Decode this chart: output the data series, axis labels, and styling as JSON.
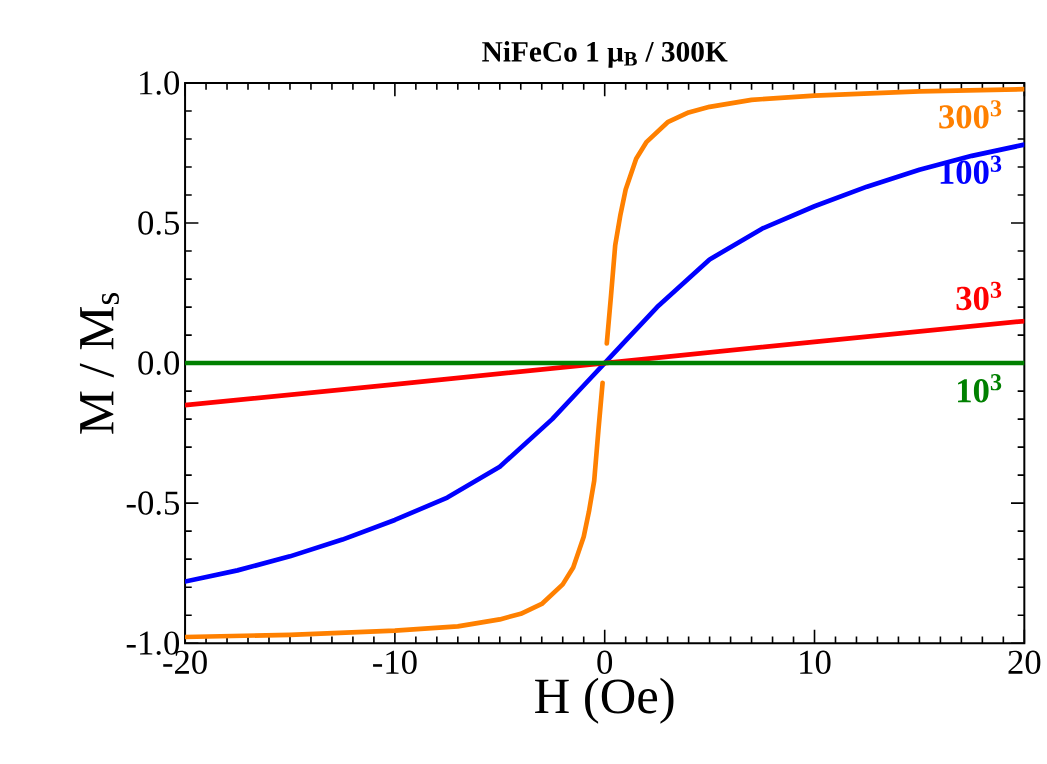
{
  "chart_data": {
    "type": "line",
    "title": "NiFeCo 1 μ$_{B}$ / 300K",
    "xlabel": "H  (Oe)",
    "ylabel": "M / M$_{s}$",
    "xlim": [
      -20,
      20
    ],
    "ylim": [
      -1,
      1
    ],
    "xticks": [
      -20,
      -10,
      0,
      10,
      20
    ],
    "yticks": [
      {
        "value": -1,
        "label": "-1.0"
      },
      {
        "value": -0.5,
        "label": "-0.5"
      },
      {
        "value": 0,
        "label": "0.0"
      },
      {
        "value": 0.5,
        "label": "0.5"
      },
      {
        "value": 1,
        "label": "1.0"
      }
    ],
    "line_style": "solid",
    "series": [
      {
        "name": "300$^{3}$",
        "color": "#ff8000",
        "x": [
          -20,
          -15,
          -10,
          -7,
          -5,
          -4,
          -3,
          -2,
          -1.5,
          -1,
          -0.75,
          -0.5,
          -0.3,
          -0.1,
          0,
          0.1,
          0.3,
          0.5,
          0.75,
          1,
          1.5,
          2,
          3,
          4,
          5,
          7,
          10,
          15,
          20
        ],
        "values": [
          -0.978,
          -0.97,
          -0.955,
          -0.94,
          -0.915,
          -0.895,
          -0.86,
          -0.79,
          -0.73,
          -0.62,
          -0.53,
          -0.42,
          -0.24,
          -0.07,
          null,
          0.07,
          0.24,
          0.42,
          0.53,
          0.62,
          0.73,
          0.79,
          0.86,
          0.895,
          0.915,
          0.94,
          0.955,
          0.97,
          0.978
        ]
      },
      {
        "name": "100$^{3}$",
        "color": "#0000ff",
        "x": [
          -20,
          -17.5,
          -15,
          -12.5,
          -10,
          -7.5,
          -5,
          -2.5,
          -1,
          0,
          1,
          2.5,
          5,
          7.5,
          10,
          12.5,
          15,
          17.5,
          20
        ],
        "values": [
          -0.78,
          -0.74,
          -0.69,
          -0.63,
          -0.56,
          -0.48,
          -0.37,
          -0.2,
          -0.08,
          0,
          0.08,
          0.2,
          0.37,
          0.48,
          0.56,
          0.63,
          0.69,
          0.74,
          0.78
        ]
      },
      {
        "name": "30$^{3}$",
        "color": "#ff0000",
        "x": [
          -20,
          -10,
          0,
          10,
          20
        ],
        "values": [
          -0.15,
          -0.076,
          0,
          0.076,
          0.15
        ]
      },
      {
        "name": "10$^{3}$",
        "color": "#008000",
        "x": [
          -20,
          0,
          20
        ],
        "values": [
          0,
          0,
          0
        ]
      }
    ]
  }
}
